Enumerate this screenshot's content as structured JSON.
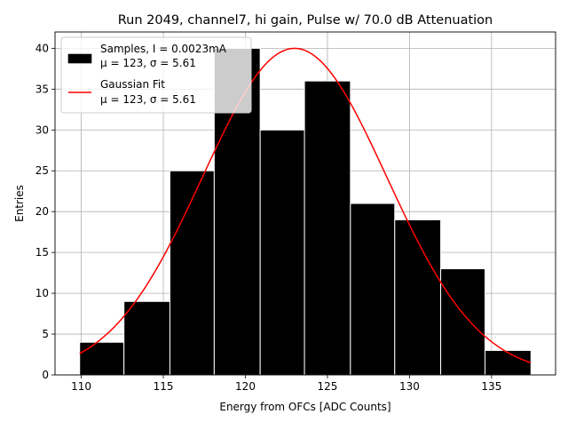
{
  "chart_data": {
    "type": "bar",
    "title": "Run 2049, channel7, hi gain, Pulse w/ 70.0 dB Attenuation",
    "xlabel": "Energy from OFCs [ADC Counts]",
    "ylabel": "Entries",
    "xlim": [
      108.4,
      138.9
    ],
    "ylim": [
      0,
      42
    ],
    "grid": true,
    "legend_placement": "upper-left",
    "x_ticks": [
      110,
      115,
      120,
      125,
      130,
      135
    ],
    "y_ticks": [
      0,
      5,
      10,
      15,
      20,
      25,
      30,
      35,
      40
    ],
    "bins": [
      {
        "left": 109.9,
        "right": 112.6,
        "value": 4
      },
      {
        "left": 112.6,
        "right": 115.4,
        "value": 9
      },
      {
        "left": 115.4,
        "right": 118.1,
        "value": 25
      },
      {
        "left": 118.1,
        "right": 120.9,
        "value": 40
      },
      {
        "left": 120.9,
        "right": 123.6,
        "value": 30
      },
      {
        "left": 123.6,
        "right": 126.4,
        "value": 36
      },
      {
        "left": 126.4,
        "right": 129.1,
        "value": 21
      },
      {
        "left": 129.1,
        "right": 131.9,
        "value": 19
      },
      {
        "left": 131.9,
        "right": 134.6,
        "value": 13
      },
      {
        "left": 134.6,
        "right": 137.4,
        "value": 3
      }
    ],
    "series": [
      {
        "name": "Samples, I = 0.0023mA",
        "stats": "μ = 123, σ = 5.61",
        "kind": "histogram",
        "color": "#000000",
        "edge_color": "#ffffff"
      },
      {
        "name": "Gaussian Fit",
        "stats": "μ = 123, σ = 5.61",
        "kind": "line",
        "color": "#ff0000",
        "mu": 123,
        "sigma": 5.61,
        "amplitude": 40,
        "x_range": [
          109.9,
          137.4
        ]
      }
    ]
  }
}
